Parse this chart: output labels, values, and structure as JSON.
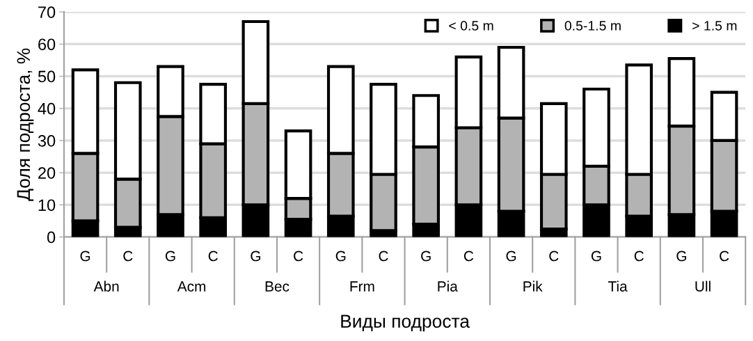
{
  "chart_data": {
    "type": "bar",
    "stacked": true,
    "xlabel": "Виды подроста",
    "ylabel": "Доля подроста, %",
    "categories": [
      "G",
      "C",
      "G",
      "C",
      "G",
      "C",
      "G",
      "C",
      "G",
      "C",
      "G",
      "C",
      "G",
      "C",
      "G",
      "C"
    ],
    "annotations": [
      "Abn",
      "Acm",
      "Bec",
      "Frm",
      "Pia",
      "Pik",
      "Tia",
      "Ull"
    ],
    "series": [
      {
        "name": "> 1.5 m",
        "color": "#000000",
        "values": [
          5,
          3,
          7,
          6,
          10,
          5.5,
          6.5,
          2,
          4,
          10,
          8,
          2.5,
          10,
          6.5,
          7,
          8
        ]
      },
      {
        "name": "0.5-1.5 m",
        "color": "#b3b3b3",
        "values": [
          21,
          15,
          30.5,
          23,
          31.5,
          6.5,
          19.5,
          17.5,
          24,
          24,
          29,
          17,
          12,
          13,
          27.5,
          22
        ]
      },
      {
        "name": "< 0.5 m",
        "color": "#ffffff",
        "values": [
          26,
          30,
          15.5,
          18.5,
          25.5,
          21,
          27,
          28,
          16,
          22,
          22,
          22,
          24,
          34,
          21,
          15
        ]
      }
    ],
    "ylim": [
      0,
      70
    ],
    "yticks": [
      0,
      10,
      20,
      30,
      40,
      50,
      60,
      70
    ],
    "grid": "y",
    "legend": "top right"
  }
}
